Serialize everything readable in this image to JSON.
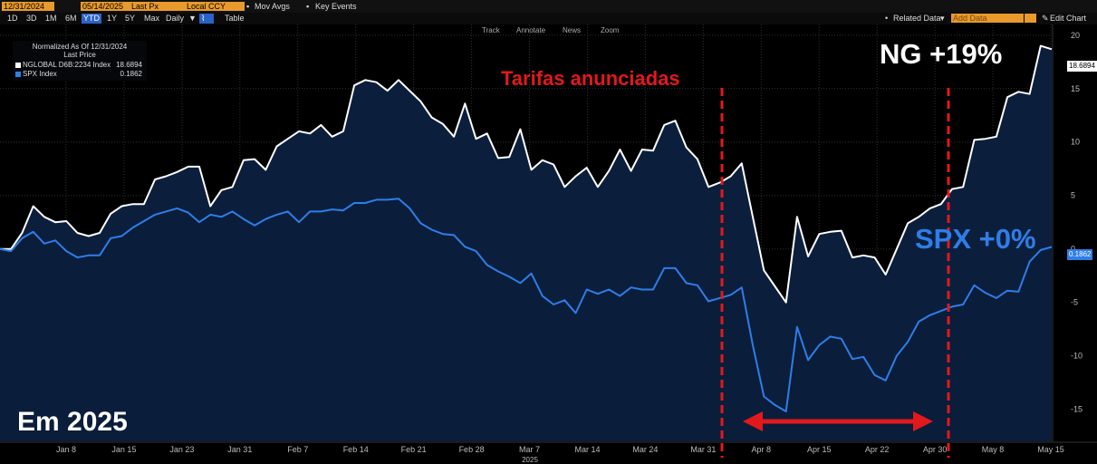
{
  "toolbar": {
    "start_date": "12/31/2024",
    "end_date": "05/14/2025",
    "price_field": "Last Px",
    "currency": "Local CCY",
    "mov_avgs": "Mov Avgs",
    "key_events": "Key Events",
    "ranges": [
      "1D",
      "3D",
      "1M",
      "6M",
      "YTD",
      "1Y",
      "5Y",
      "Max"
    ],
    "active_range": "YTD",
    "frequency": "Daily",
    "table_label": "Table",
    "related_data": "Related Data",
    "add_data_placeholder": "Add Data",
    "edit_chart": "Edit Chart"
  },
  "chart_tools": [
    "Track",
    "Annotate",
    "News",
    "Zoom"
  ],
  "legend": {
    "header1": "Normalized As Of 12/31/2024",
    "header2": "Last Price",
    "items": [
      {
        "name": "NGLOBAL D6B:2234 Index",
        "value": "18.6894",
        "color": "#ffffff"
      },
      {
        "name": "SPX Index",
        "value": "0.1862",
        "color": "#2f7de8"
      }
    ]
  },
  "annotations": {
    "tariffs": "Tarifas anunciadas",
    "ng": "NG +19%",
    "spx": "SPX +0%",
    "year": "Em 2025"
  },
  "price_tags": {
    "ng": "18.6894",
    "spx": "0.1862"
  },
  "chart_data": {
    "type": "line",
    "x_tick_labels": [
      "Jan 8",
      "Jan 15",
      "Jan 23",
      "Jan 31",
      "Feb 7",
      "Feb 14",
      "Feb 21",
      "Feb 28",
      "Mar 7",
      "Mar 14",
      "Mar 24",
      "Mar 31",
      "Apr 8",
      "Apr 15",
      "Apr 22",
      "Apr 30",
      "May 8",
      "May 15"
    ],
    "x_axis_year": "2025",
    "y_ticks": [
      20,
      15,
      10,
      5,
      0,
      -5,
      -10,
      -15
    ],
    "ylim": [
      -18,
      21
    ],
    "series": [
      {
        "name": "NGLOBAL D6B:2234 Index",
        "color": "#ffffff",
        "values": [
          0,
          0,
          1.5,
          4,
          3,
          2.5,
          2.6,
          1.5,
          1.2,
          1.5,
          3.3,
          4,
          4.2,
          4.2,
          6.5,
          6.8,
          7.2,
          7.7,
          7.7,
          4,
          5.5,
          5.8,
          8.3,
          8.4,
          7.4,
          9.6,
          10.3,
          11,
          10.8,
          11.6,
          10.5,
          11,
          15.3,
          15.8,
          15.6,
          14.8,
          15.8,
          14.8,
          13.8,
          12.3,
          11.7,
          10.5,
          13.6,
          10.3,
          10.8,
          8.5,
          8.6,
          11.2,
          7.4,
          8.3,
          7.9,
          5.8,
          6.8,
          7.6,
          5.8,
          7.3,
          9.3,
          7.3,
          9.3,
          9.2,
          11.6,
          12,
          9.5,
          8.4,
          5.8,
          6.2,
          6.8,
          8,
          3,
          -2,
          -3.5,
          -5,
          3,
          -0.7,
          1.4,
          1.6,
          1.7,
          -0.8,
          -0.6,
          -0.8,
          -2.4,
          0,
          2.4,
          3,
          3.8,
          4.2,
          5.6,
          5.8,
          10.2,
          10.3,
          10.5,
          14.2,
          14.7,
          14.5,
          19,
          18.6894
        ]
      },
      {
        "name": "SPX Index",
        "color": "#2f7de8",
        "values": [
          0,
          -0.2,
          1,
          1.6,
          0.5,
          0.8,
          -0.2,
          -0.8,
          -0.6,
          -0.6,
          1,
          1.2,
          2,
          2.6,
          3.2,
          3.5,
          3.8,
          3.4,
          2.5,
          3.2,
          3,
          3.5,
          2.8,
          2.2,
          2.8,
          3.2,
          3.5,
          2.5,
          3.5,
          3.5,
          3.7,
          3.6,
          4.3,
          4.3,
          4.6,
          4.6,
          4.7,
          3.8,
          2.4,
          1.8,
          1.4,
          1.3,
          0.2,
          -0.2,
          -1.5,
          -2.1,
          -2.6,
          -3.2,
          -2.3,
          -4.4,
          -5.2,
          -4.8,
          -6,
          -3.8,
          -4.2,
          -3.8,
          -4.4,
          -3.6,
          -3.8,
          -3.8,
          -1.8,
          -1.8,
          -3.2,
          -3.4,
          -4.9,
          -4.6,
          -4.3,
          -3.6,
          -9,
          -13.8,
          -14.6,
          -15.2,
          -7.3,
          -10.4,
          -9,
          -8.2,
          -8.4,
          -10.3,
          -10.1,
          -11.8,
          -12.3,
          -10,
          -8.7,
          -6.8,
          -6.2,
          -5.8,
          -5.4,
          -5.2,
          -3.4,
          -4.1,
          -4.6,
          -3.9,
          -4,
          -1.2,
          -0.1,
          0.1862
        ]
      }
    ]
  },
  "colors": {
    "accent": "#e89a2c",
    "ng": "#ffffff",
    "spx": "#2f7de8",
    "tariff": "#e2191c"
  }
}
